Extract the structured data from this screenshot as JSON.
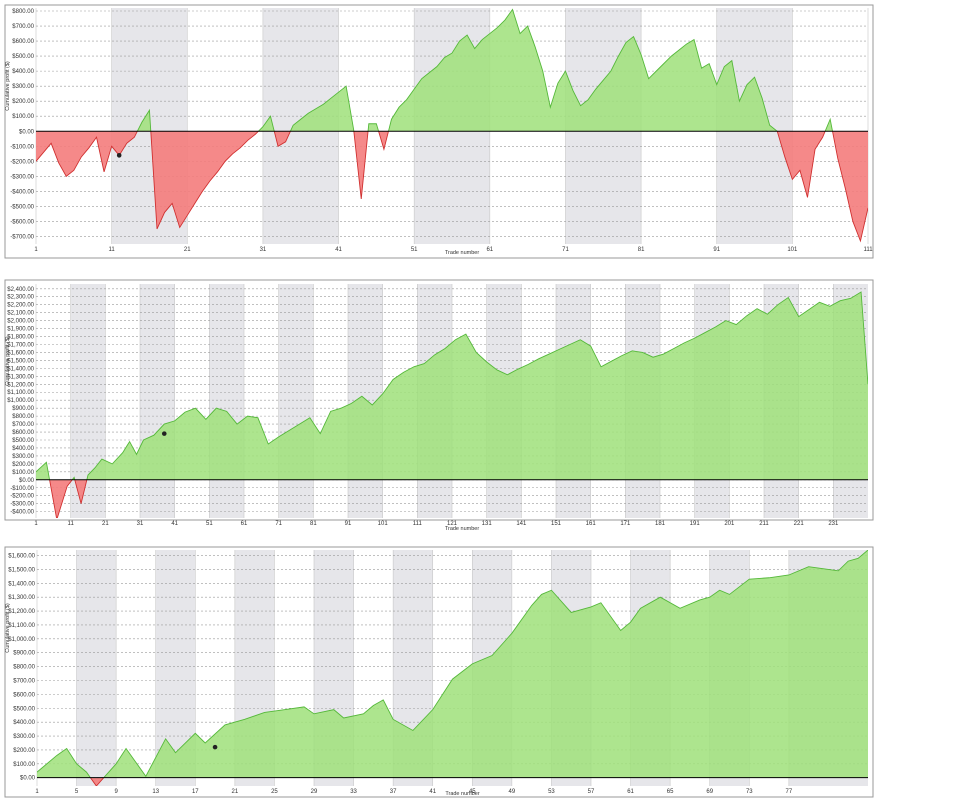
{
  "chart_data": [
    {
      "type": "area",
      "ylabel": "Cumulative profit ($)",
      "xlabel": "Trade number",
      "ylim": [
        -750,
        820
      ],
      "xlim": [
        1,
        111
      ],
      "yticks": [
        800,
        700,
        600,
        500,
        400,
        300,
        200,
        100,
        0,
        -100,
        -200,
        -300,
        -400,
        -500,
        -600,
        -700
      ],
      "ytick_labels": [
        "$800.00",
        "$700.00",
        "$600.00",
        "$500.00",
        "$400.00",
        "$300.00",
        "$200.00",
        "$100.00",
        "$0.00",
        "-$100.00",
        "-$200.00",
        "-$300.00",
        "-$400.00",
        "-$500.00",
        "-$600.00",
        "-$700.00"
      ],
      "xticks": [
        "1",
        "11",
        "21",
        "31",
        "41",
        "51",
        "61",
        "71",
        "81",
        "91",
        "101",
        "111"
      ],
      "grid": true,
      "positive_color": "#9fe07a",
      "negative_color": "#f47c7c",
      "marker": {
        "x": 12,
        "y": -160
      },
      "x": [
        1,
        2,
        3,
        4,
        5,
        6,
        7,
        8,
        9,
        10,
        11,
        12,
        13,
        14,
        15,
        16,
        17,
        18,
        19,
        20,
        21,
        22,
        23,
        24,
        25,
        26,
        27,
        28,
        29,
        30,
        31,
        32,
        33,
        34,
        35,
        36,
        37,
        38,
        39,
        40,
        41,
        42,
        43,
        44,
        45,
        46,
        47,
        48,
        49,
        50,
        51,
        52,
        53,
        54,
        55,
        56,
        57,
        58,
        59,
        60,
        61,
        62,
        63,
        64,
        65,
        66,
        67,
        68,
        69,
        70,
        71,
        72,
        73,
        74,
        75,
        76,
        77,
        78,
        79,
        80,
        81,
        82,
        83,
        84,
        85,
        86,
        87,
        88,
        89,
        90,
        91,
        92,
        93,
        94,
        95,
        96,
        97,
        98,
        99,
        100,
        101,
        102,
        103,
        104,
        105,
        106,
        107,
        108,
        109,
        110,
        111
      ],
      "values": [
        -200,
        -140,
        -80,
        -210,
        -300,
        -260,
        -170,
        -110,
        -40,
        -270,
        -100,
        -160,
        -80,
        -40,
        60,
        140,
        -650,
        -540,
        -480,
        -640,
        -560,
        -480,
        -400,
        -330,
        -270,
        -200,
        -150,
        -110,
        -60,
        -20,
        30,
        100,
        -100,
        -70,
        40,
        80,
        120,
        150,
        180,
        220,
        260,
        300,
        10,
        -450,
        50,
        50,
        -120,
        80,
        160,
        210,
        280,
        350,
        390,
        430,
        490,
        520,
        600,
        640,
        550,
        610,
        650,
        690,
        740,
        810,
        650,
        700,
        560,
        400,
        160,
        320,
        400,
        270,
        170,
        210,
        280,
        340,
        400,
        500,
        590,
        630,
        510,
        350,
        400,
        450,
        500,
        540,
        580,
        610,
        420,
        450,
        310,
        430,
        470,
        200,
        310,
        360,
        220,
        40,
        0,
        -170,
        -320,
        -260,
        -440,
        -120,
        -40,
        80,
        -180,
        -380,
        -600,
        -730,
        -510
      ]
    },
    {
      "type": "area",
      "ylabel": "Cumulative profit ($)",
      "xlabel": "Trade number",
      "ylim": [
        -480,
        2460
      ],
      "xlim": [
        1,
        241
      ],
      "yticks": [
        2400,
        2300,
        2200,
        2100,
        2000,
        1900,
        1800,
        1700,
        1600,
        1500,
        1400,
        1300,
        1200,
        1100,
        1000,
        900,
        800,
        700,
        600,
        500,
        400,
        300,
        200,
        100,
        0,
        -100,
        -200,
        -300,
        -400
      ],
      "ytick_labels": [
        "$2,400.00",
        "$2,300.00",
        "$2,200.00",
        "$2,100.00",
        "$2,000.00",
        "$1,900.00",
        "$1,800.00",
        "$1,700.00",
        "$1,600.00",
        "$1,500.00",
        "$1,400.00",
        "$1,300.00",
        "$1,200.00",
        "$1,100.00",
        "$1,000.00",
        "$900.00",
        "$800.00",
        "$700.00",
        "$600.00",
        "$500.00",
        "$400.00",
        "$300.00",
        "$200.00",
        "$100.00",
        "$0.00",
        "-$100.00",
        "-$200.00",
        "-$300.00",
        "-$400.00"
      ],
      "xticks": [
        "1",
        "11",
        "21",
        "31",
        "41",
        "51",
        "61",
        "71",
        "81",
        "91",
        "101",
        "111",
        "121",
        "131",
        "141",
        "151",
        "161",
        "171",
        "181",
        "191",
        "201",
        "211",
        "221",
        "231"
      ],
      "grid": true,
      "positive_color": "#9fe07a",
      "negative_color": "#f47c7c",
      "marker": {
        "x": 38,
        "y": 580
      },
      "x": [
        1,
        4,
        7,
        10,
        12,
        14,
        16,
        18,
        20,
        23,
        26,
        28,
        30,
        32,
        35,
        38,
        41,
        44,
        47,
        50,
        53,
        56,
        59,
        62,
        65,
        68,
        71,
        74,
        77,
        80,
        83,
        86,
        89,
        92,
        95,
        98,
        101,
        104,
        107,
        110,
        113,
        116,
        119,
        122,
        125,
        128,
        131,
        134,
        137,
        140,
        143,
        146,
        149,
        152,
        155,
        158,
        161,
        164,
        167,
        170,
        173,
        176,
        179,
        182,
        185,
        188,
        191,
        194,
        197,
        200,
        203,
        206,
        209,
        212,
        215,
        218,
        221,
        224,
        227,
        230,
        233,
        236,
        239,
        241
      ],
      "values": [
        100,
        220,
        -500,
        -80,
        30,
        -300,
        60,
        150,
        260,
        200,
        340,
        480,
        320,
        500,
        560,
        700,
        740,
        850,
        900,
        760,
        900,
        860,
        700,
        800,
        780,
        450,
        540,
        620,
        700,
        780,
        580,
        860,
        900,
        960,
        1050,
        940,
        1080,
        1260,
        1350,
        1420,
        1460,
        1570,
        1650,
        1760,
        1830,
        1600,
        1480,
        1380,
        1320,
        1390,
        1450,
        1520,
        1580,
        1640,
        1700,
        1760,
        1680,
        1420,
        1490,
        1560,
        1620,
        1600,
        1540,
        1580,
        1650,
        1720,
        1780,
        1850,
        1920,
        2000,
        1950,
        2060,
        2150,
        2080,
        2200,
        2290,
        2050,
        2140,
        2230,
        2180,
        2250,
        2280,
        2360,
        1200
      ]
    },
    {
      "type": "area",
      "ylabel": "Cumulative profit ($)",
      "xlabel": "Trade number",
      "ylim": [
        -60,
        1640
      ],
      "xlim": [
        1,
        85
      ],
      "yticks": [
        1600,
        1500,
        1400,
        1300,
        1200,
        1100,
        1000,
        900,
        800,
        700,
        600,
        500,
        400,
        300,
        200,
        100,
        0
      ],
      "ytick_labels": [
        "$1,600.00",
        "$1,500.00",
        "$1,400.00",
        "$1,300.00",
        "$1,200.00",
        "$1,100.00",
        "$1,000.00",
        "$900.00",
        "$800.00",
        "$700.00",
        "$600.00",
        "$500.00",
        "$400.00",
        "$300.00",
        "$200.00",
        "$100.00",
        "$0.00"
      ],
      "xticks": [
        "1",
        "5",
        "9",
        "13",
        "17",
        "21",
        "25",
        "29",
        "33",
        "37",
        "41",
        "45",
        "49",
        "53",
        "57",
        "61",
        "65",
        "69",
        "73",
        "77"
      ],
      "grid": true,
      "positive_color": "#9fe07a",
      "negative_color": "#f47c7c",
      "marker": {
        "x": 19,
        "y": 220
      },
      "x": [
        1,
        3,
        4,
        5,
        6,
        7,
        9,
        10,
        12,
        14,
        15,
        17,
        18,
        20,
        22,
        24,
        26,
        28,
        29,
        31,
        32,
        34,
        35,
        36,
        37,
        39,
        41,
        43,
        45,
        47,
        49,
        51,
        52,
        53,
        55,
        57,
        58,
        60,
        61,
        62,
        64,
        66,
        68,
        69,
        70,
        71,
        73,
        75,
        77,
        79,
        81,
        82,
        83,
        84,
        85
      ],
      "values": [
        40,
        160,
        210,
        100,
        40,
        -60,
        100,
        210,
        10,
        280,
        180,
        320,
        250,
        380,
        420,
        470,
        490,
        510,
        460,
        490,
        430,
        460,
        520,
        560,
        420,
        340,
        490,
        710,
        820,
        880,
        1040,
        1240,
        1320,
        1350,
        1190,
        1230,
        1260,
        1060,
        1120,
        1220,
        1300,
        1220,
        1280,
        1300,
        1350,
        1320,
        1430,
        1440,
        1460,
        1520,
        1500,
        1490,
        1560,
        1580,
        1640
      ]
    }
  ]
}
